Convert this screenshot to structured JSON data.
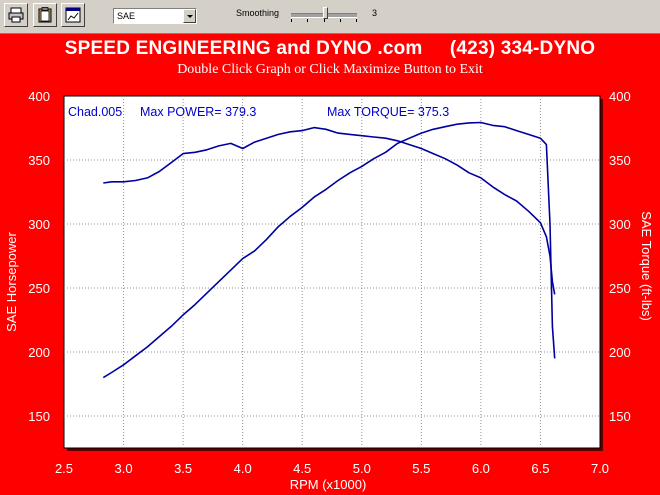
{
  "toolbar": {
    "buttons": [
      {
        "name": "print",
        "icon": "printer-icon"
      },
      {
        "name": "clipboard",
        "icon": "clipboard-icon"
      },
      {
        "name": "maximize",
        "icon": "chart-window-icon"
      }
    ],
    "correction_select": {
      "value": "SAE"
    },
    "smoothing": {
      "label": "Smoothing",
      "value": "3",
      "level": 3
    }
  },
  "header": {
    "title": "SPEED ENGINEERING and DYNO .com     (423) 334-DYNO",
    "subtitle": "Double Click Graph or Click Maximize Button to Exit"
  },
  "colors": {
    "background": "#ff0000",
    "plot_background": "#ffffff",
    "series": "#0000a0",
    "annotation": "#0000cc",
    "toolbar": "#d4d0c8"
  },
  "chart_data": {
    "type": "line",
    "annotation": {
      "run": "Chad.005",
      "max_power": "Max POWER= 379.3",
      "max_torque": "Max TORQUE= 375.3"
    },
    "xlabel": "RPM (x1000)",
    "ylabel_left": "SAE Horsepower",
    "ylabel_right": "SAE Torque (ft-lbs)",
    "xlim": [
      2.5,
      7.0
    ],
    "ylim": [
      125,
      400
    ],
    "xticks": [
      "2.5",
      "3.0",
      "3.5",
      "4.0",
      "4.5",
      "5.0",
      "5.5",
      "6.0",
      "6.5",
      "7.0"
    ],
    "yticks_left": [
      "150",
      "200",
      "250",
      "300",
      "350",
      "400"
    ],
    "yticks_right": [
      "150",
      "200",
      "250",
      "300",
      "350",
      "400"
    ],
    "grid": true,
    "series": [
      {
        "axis": "left",
        "x": [
          2.83,
          2.9,
          3.0,
          3.1,
          3.2,
          3.3,
          3.4,
          3.5,
          3.6,
          3.7,
          3.8,
          3.9,
          4.0,
          4.1,
          4.2,
          4.3,
          4.4,
          4.5,
          4.6,
          4.7,
          4.8,
          4.9,
          5.0,
          5.1,
          5.2,
          5.3,
          5.4,
          5.5,
          5.6,
          5.7,
          5.8,
          5.9,
          6.0,
          6.1,
          6.2,
          6.3,
          6.4,
          6.5,
          6.55,
          6.58,
          6.6,
          6.62
        ],
        "values": [
          180,
          184,
          190,
          197,
          204,
          212,
          220,
          229,
          237,
          246,
          255,
          264,
          273,
          279,
          288,
          298,
          306,
          313,
          321,
          327,
          334,
          340,
          345,
          351,
          356,
          363,
          367,
          371,
          374,
          376,
          378,
          379,
          379.3,
          377,
          376,
          373,
          370,
          367,
          362,
          300,
          220,
          195
        ]
      },
      {
        "axis": "right",
        "x": [
          2.83,
          2.9,
          3.0,
          3.1,
          3.2,
          3.3,
          3.4,
          3.5,
          3.6,
          3.7,
          3.8,
          3.9,
          4.0,
          4.1,
          4.2,
          4.3,
          4.4,
          4.5,
          4.6,
          4.7,
          4.8,
          4.9,
          5.0,
          5.1,
          5.2,
          5.3,
          5.4,
          5.5,
          5.6,
          5.7,
          5.8,
          5.9,
          6.0,
          6.1,
          6.2,
          6.3,
          6.4,
          6.5,
          6.55,
          6.58,
          6.6,
          6.62
        ],
        "values": [
          332,
          333,
          333,
          334,
          336,
          341,
          348,
          355,
          356,
          358,
          361,
          363,
          359,
          364,
          367,
          370,
          372,
          373,
          375.3,
          374,
          371,
          370,
          369,
          368,
          367,
          365,
          362,
          359,
          355,
          351,
          346,
          340,
          336,
          329,
          323,
          318,
          310,
          301,
          290,
          275,
          255,
          245
        ]
      }
    ]
  }
}
